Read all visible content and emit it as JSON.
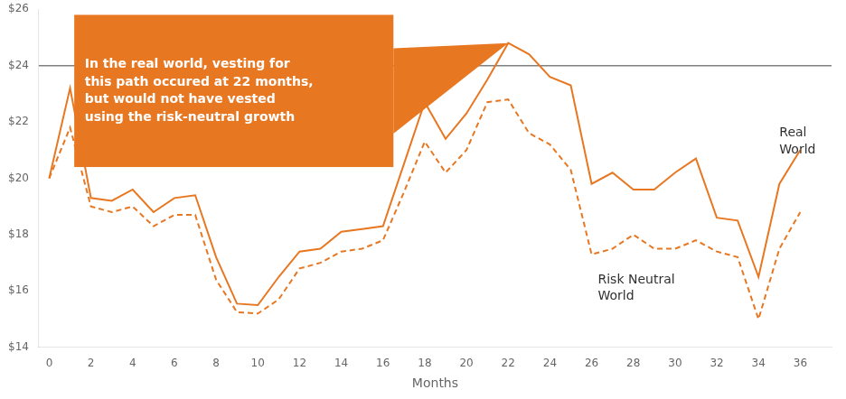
{
  "chart_data": {
    "type": "line",
    "x": [
      0,
      1,
      2,
      3,
      4,
      5,
      6,
      7,
      8,
      9,
      10,
      11,
      12,
      13,
      14,
      15,
      16,
      17,
      18,
      19,
      20,
      21,
      22,
      23,
      24,
      25,
      26,
      27,
      28,
      29,
      30,
      31,
      32,
      33,
      34,
      35,
      36
    ],
    "series": [
      {
        "name": "Real\nWorld",
        "color": "#E87722",
        "line_style": "solid",
        "values": [
          20.0,
          23.2,
          19.3,
          19.2,
          19.6,
          18.8,
          19.3,
          19.4,
          17.2,
          15.55,
          15.5,
          16.5,
          17.4,
          17.5,
          18.1,
          18.2,
          18.3,
          20.5,
          22.7,
          21.4,
          22.3,
          23.5,
          24.8,
          24.4,
          23.6,
          23.3,
          19.8,
          20.2,
          19.6,
          19.6,
          20.2,
          20.7,
          18.6,
          18.5,
          16.5,
          19.8,
          21.0
        ]
      },
      {
        "name": "Risk Neutral\nWorld",
        "color": "#E87722",
        "line_style": "dashed",
        "values": [
          20.0,
          21.8,
          19.0,
          18.8,
          19.0,
          18.3,
          18.7,
          18.7,
          16.4,
          15.25,
          15.2,
          15.7,
          16.8,
          17.0,
          17.4,
          17.5,
          17.8,
          19.5,
          21.3,
          20.2,
          21.0,
          22.7,
          22.8,
          21.6,
          21.2,
          20.3,
          17.3,
          17.5,
          18.0,
          17.5,
          17.5,
          17.8,
          17.4,
          17.2,
          15.0,
          17.5,
          18.8
        ]
      }
    ],
    "xlabel": "Months",
    "xlim": [
      -0.5,
      37.5
    ],
    "xticks": [
      0,
      2,
      4,
      6,
      8,
      10,
      12,
      14,
      16,
      18,
      20,
      22,
      24,
      26,
      28,
      30,
      32,
      34,
      36
    ],
    "ylim": [
      14,
      26
    ],
    "yticks": [
      {
        "value": 14,
        "label": "$14"
      },
      {
        "value": 16,
        "label": "$16"
      },
      {
        "value": 18,
        "label": "$18"
      },
      {
        "value": 20,
        "label": "$20"
      },
      {
        "value": 22,
        "label": "$22"
      },
      {
        "value": 24,
        "label": "$24"
      },
      {
        "value": 26,
        "label": "$26"
      }
    ],
    "hline": {
      "value": 24.0,
      "color": "#808080"
    },
    "annotations": [
      {
        "text": "In the real world, vesting for\nthis path occured at 22 months,\nbut would not have vested\nusing the risk-neutral growth",
        "x": 22.0,
        "y": 24.8,
        "color": "#E87722",
        "text_color": "#ffffff"
      }
    ],
    "grid": false
  }
}
